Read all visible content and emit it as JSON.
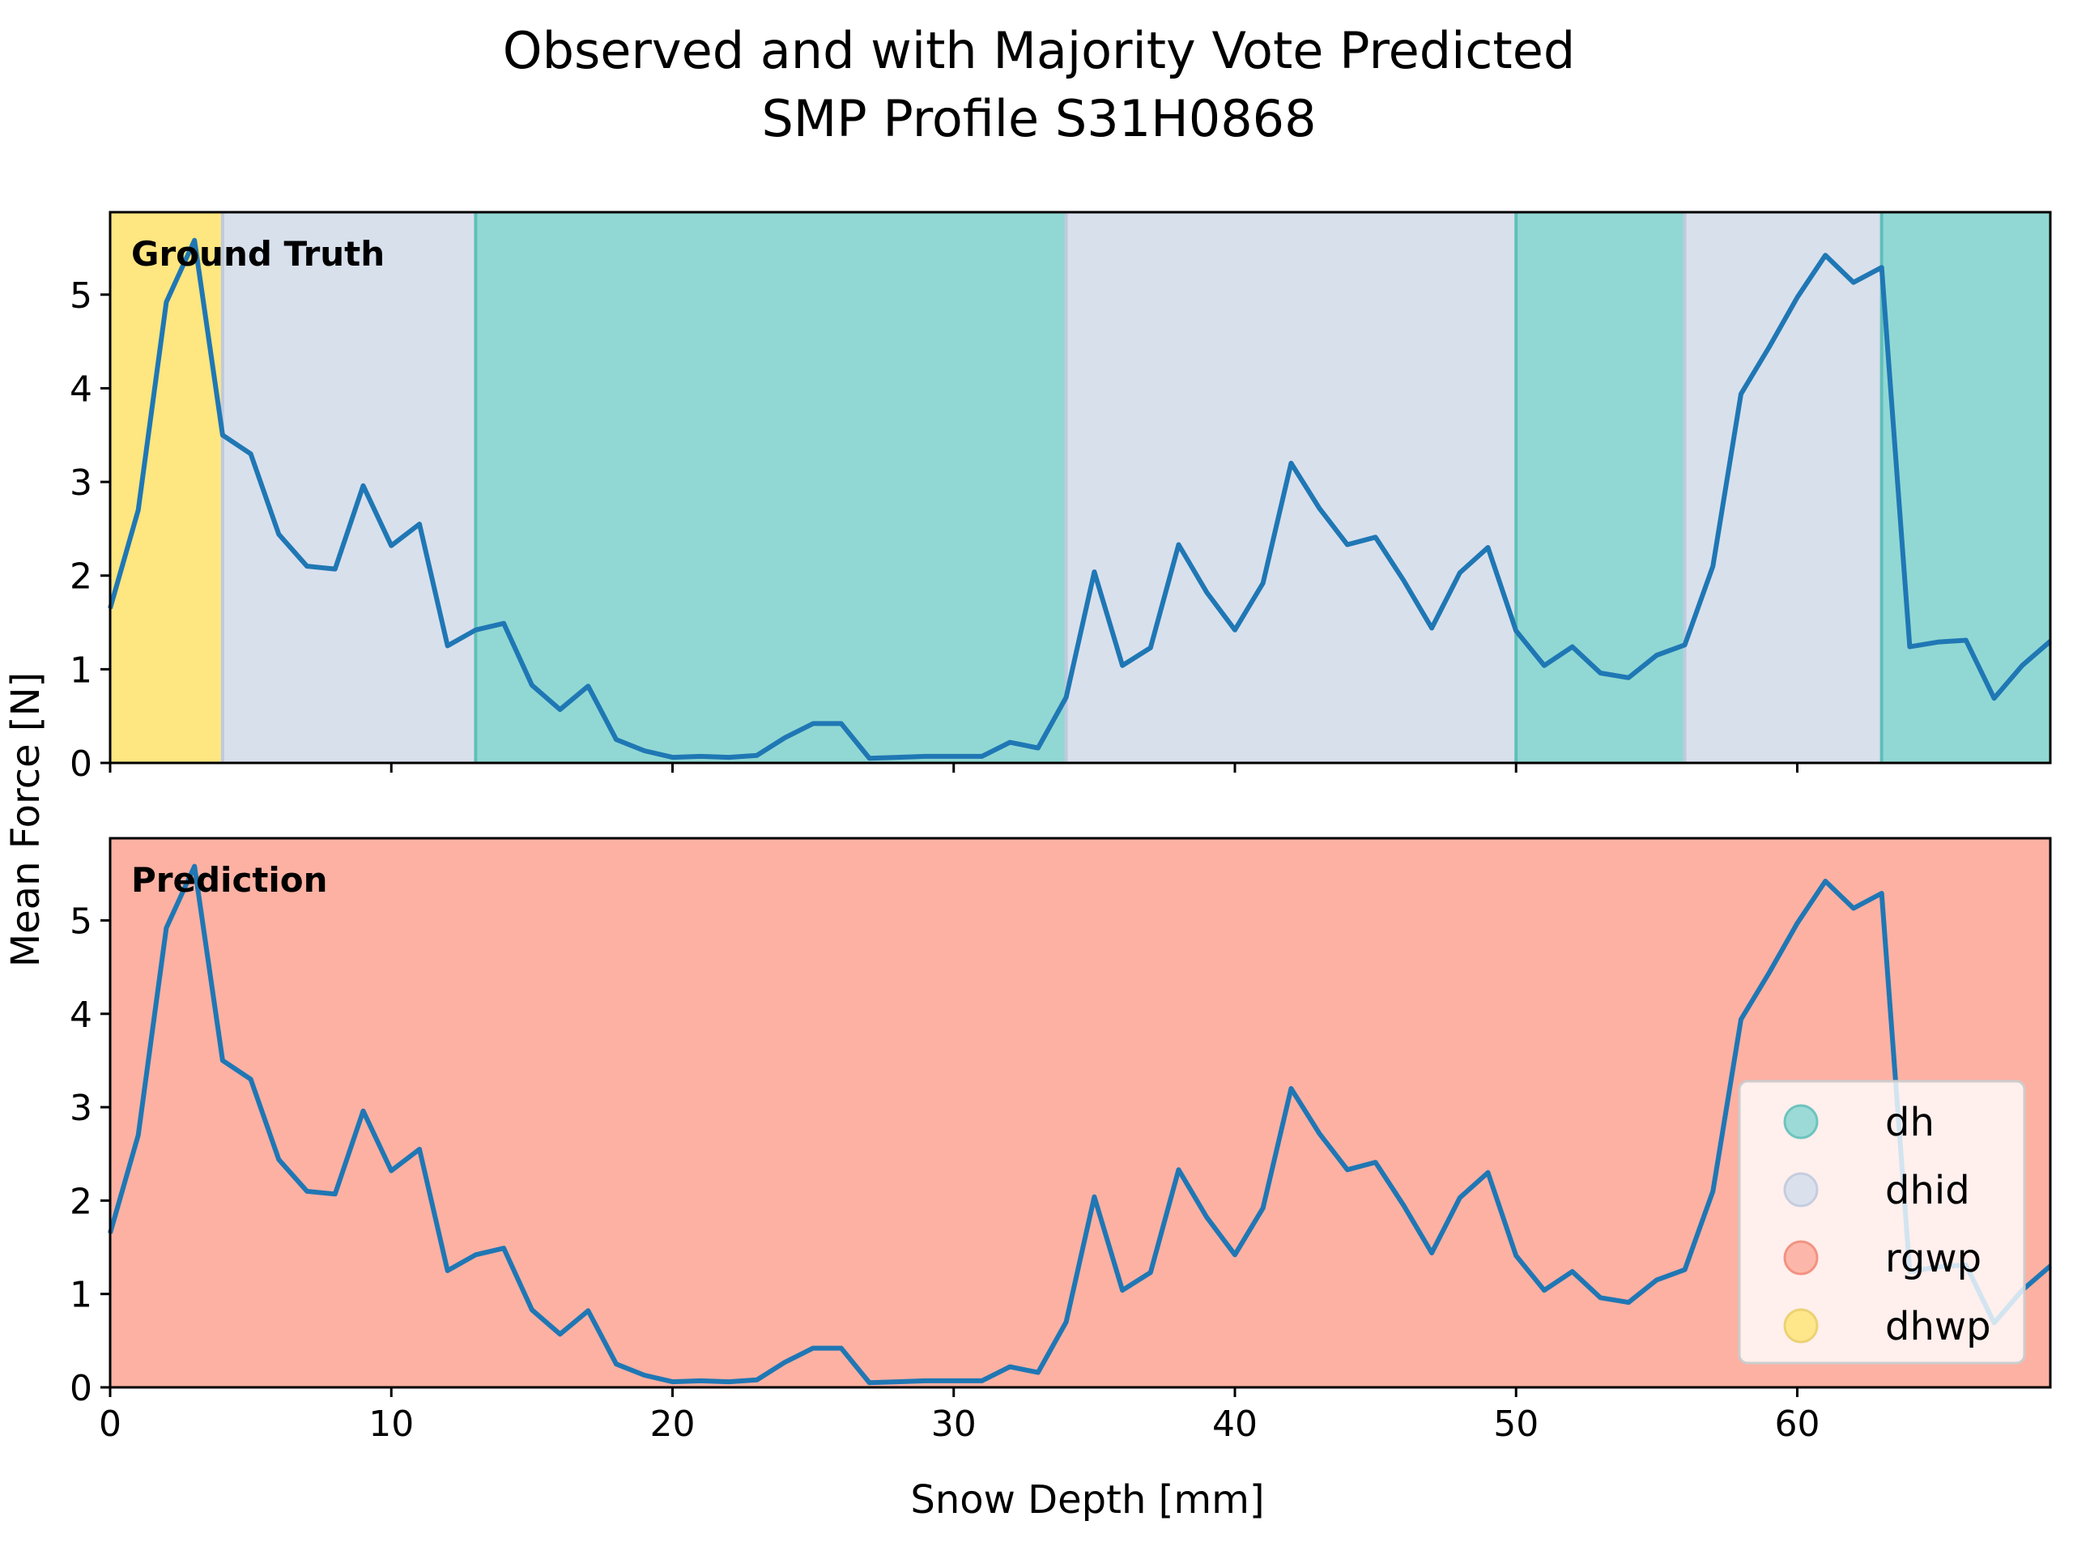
{
  "chart_data": {
    "type": "line",
    "title": "Observed and with Majority Vote Predicted\nSMP Profile S31H0868",
    "title_lines": [
      "Observed and with Majority Vote Predicted",
      "SMP Profile S31H0868"
    ],
    "xlabel": "Snow Depth [mm]",
    "ylabel": "Mean Force [N]",
    "xlim": [
      0,
      69
    ],
    "ylim": [
      0,
      5.88
    ],
    "xticks": [
      0,
      10,
      20,
      30,
      40,
      50,
      60
    ],
    "yticks": [
      0,
      1,
      2,
      3,
      4,
      5
    ],
    "grid": false,
    "legend_position": "lower-right",
    "colors": {
      "line": "#1f77b4",
      "dh": "#91d8d4",
      "dh_edge": "#5fbfba",
      "dhid": "#d8e0ec",
      "dhid_edge": "#bfcade",
      "rgwp": "#fdb1a3",
      "dhwp": "#fee680",
      "dhwp_edge": "#e9cf66",
      "axes": "#000000"
    },
    "series": [
      {
        "x": [
          0,
          1,
          2,
          3,
          4,
          5,
          6,
          7,
          8,
          9,
          10,
          11,
          12,
          13,
          14,
          15,
          16,
          17,
          18,
          19,
          20,
          21,
          22,
          23,
          24,
          25,
          26,
          27,
          28,
          29,
          30,
          31,
          32,
          33,
          34,
          35,
          36,
          37,
          38,
          39,
          40,
          41,
          42,
          43,
          44,
          45,
          46,
          47,
          48,
          49,
          50,
          51,
          52,
          53,
          54,
          55,
          56,
          57,
          58,
          59,
          60,
          61,
          62,
          63,
          64,
          65,
          66,
          67,
          68,
          69
        ],
        "values": [
          1.65,
          2.7,
          4.92,
          5.58,
          3.5,
          3.3,
          2.44,
          2.1,
          2.07,
          2.96,
          2.32,
          2.55,
          1.25,
          1.42,
          1.49,
          0.83,
          0.57,
          0.82,
          0.25,
          0.13,
          0.06,
          0.07,
          0.06,
          0.08,
          0.27,
          0.42,
          0.42,
          0.05,
          0.06,
          0.07,
          0.07,
          0.07,
          0.22,
          0.16,
          0.7,
          2.04,
          1.04,
          1.23,
          2.33,
          1.82,
          1.42,
          1.92,
          3.2,
          2.72,
          2.33,
          2.41,
          1.95,
          1.44,
          2.03,
          2.3,
          1.41,
          1.04,
          1.24,
          0.96,
          0.91,
          1.15,
          1.26,
          2.1,
          3.94,
          4.44,
          4.97,
          5.42,
          5.13,
          5.29,
          1.24,
          1.29,
          1.31,
          0.69,
          1.04,
          1.3
        ]
      }
    ],
    "panels": [
      {
        "label": "Ground Truth",
        "segments": [
          {
            "start": 0,
            "end": 4,
            "class": "dhwp"
          },
          {
            "start": 4,
            "end": 13,
            "class": "dhid"
          },
          {
            "start": 13,
            "end": 34,
            "class": "dh"
          },
          {
            "start": 34,
            "end": 50,
            "class": "dhid"
          },
          {
            "start": 50,
            "end": 56,
            "class": "dh"
          },
          {
            "start": 56,
            "end": 63,
            "class": "dhid"
          },
          {
            "start": 63,
            "end": 69,
            "class": "dh"
          }
        ]
      },
      {
        "label": "Prediction",
        "segments": [
          {
            "start": 0,
            "end": 69,
            "class": "rgwp"
          }
        ]
      }
    ],
    "legend": [
      {
        "label": "dh",
        "class": "dh"
      },
      {
        "label": "dhid",
        "class": "dhid"
      },
      {
        "label": "rgwp",
        "class": "rgwp"
      },
      {
        "label": "dhwp",
        "class": "dhwp"
      }
    ]
  }
}
